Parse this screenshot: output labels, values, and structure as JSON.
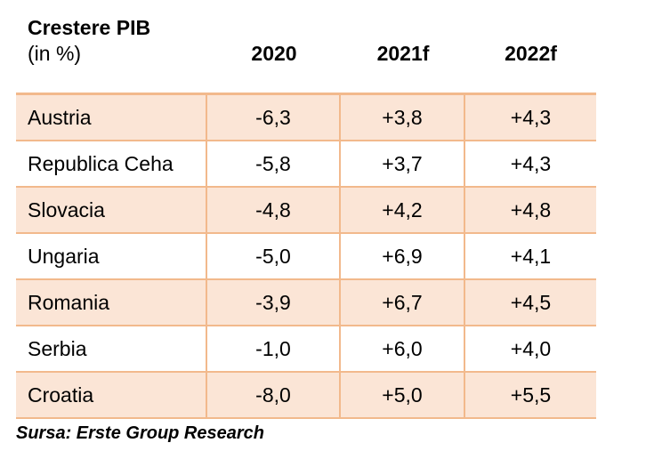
{
  "chart_data": {
    "type": "table",
    "title": "Crestere PIB",
    "subtitle": "(in %)",
    "columns": [
      "2020",
      "2021f",
      "2022f"
    ],
    "rows": [
      {
        "label": "Austria",
        "values": [
          "-6,3",
          "+3,8",
          "+4,3"
        ]
      },
      {
        "label": "Republica Ceha",
        "values": [
          "-5,8",
          "+3,7",
          "+4,3"
        ]
      },
      {
        "label": "Slovacia",
        "values": [
          "-4,8",
          "+4,2",
          "+4,8"
        ]
      },
      {
        "label": "Ungaria",
        "values": [
          "-5,0",
          "+6,9",
          "+4,1"
        ]
      },
      {
        "label": "Romania",
        "values": [
          "-3,9",
          "+6,7",
          "+4,5"
        ]
      },
      {
        "label": "Serbia",
        "values": [
          "-1,0",
          "+6,0",
          "+4,0"
        ]
      },
      {
        "label": "Croatia",
        "values": [
          "-8,0",
          "+5,0",
          "+5,5"
        ]
      }
    ],
    "source": "Sursa: Erste Group Research"
  },
  "colors": {
    "shaded_row": "#fbe5d6",
    "border": "#f2b98c"
  }
}
